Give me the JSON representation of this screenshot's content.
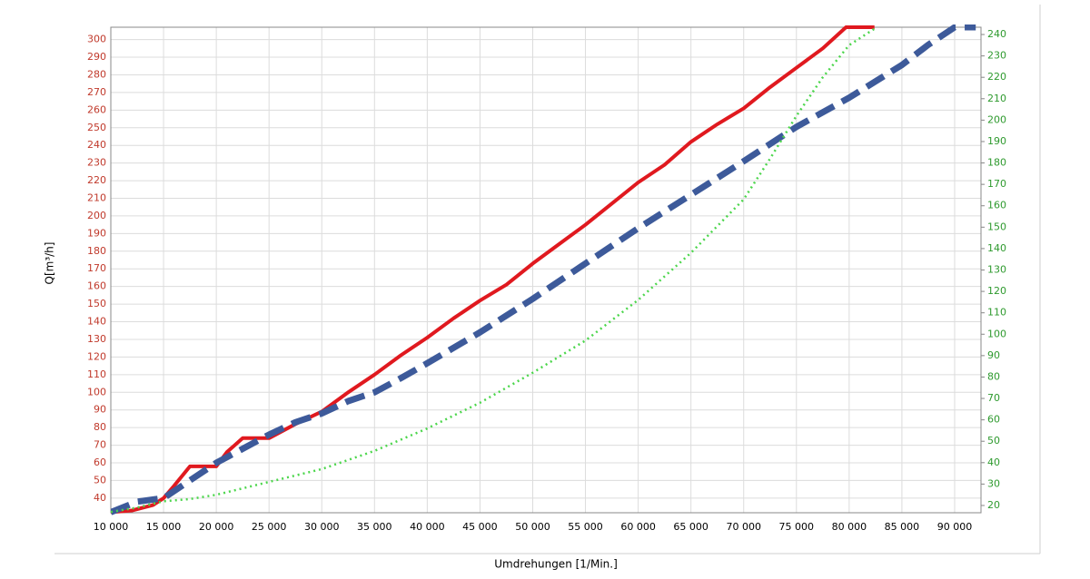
{
  "chart_data": {
    "type": "line",
    "x_label": "Umdrehungen [1/Min.]",
    "y_label": "Q[m³/h]",
    "xlim": [
      10000,
      92500
    ],
    "ylim": [
      31.7,
      307
    ],
    "y2lim": [
      16.6,
      243.4
    ],
    "xticks": [
      {
        "value": 10000,
        "label": "10 000"
      },
      {
        "value": 15000,
        "label": "15 000"
      },
      {
        "value": 20000,
        "label": "20 000"
      },
      {
        "value": 25000,
        "label": "25 000"
      },
      {
        "value": 30000,
        "label": "30 000"
      },
      {
        "value": 35000,
        "label": "35 000"
      },
      {
        "value": 40000,
        "label": "40 000"
      },
      {
        "value": 45000,
        "label": "45 000"
      },
      {
        "value": 50000,
        "label": "50 000"
      },
      {
        "value": 55000,
        "label": "55 000"
      },
      {
        "value": 60000,
        "label": "60 000"
      },
      {
        "value": 65000,
        "label": "65 000"
      },
      {
        "value": 70000,
        "label": "70 000"
      },
      {
        "value": 75000,
        "label": "75 000"
      },
      {
        "value": 80000,
        "label": "80 000"
      },
      {
        "value": 85000,
        "label": "85 000"
      },
      {
        "value": 90000,
        "label": "90 000"
      }
    ],
    "yticks": [
      40,
      50,
      60,
      70,
      80,
      90,
      100,
      110,
      120,
      130,
      140,
      150,
      160,
      170,
      180,
      190,
      200,
      210,
      220,
      230,
      240,
      250,
      260,
      270,
      280,
      290,
      300
    ],
    "y2ticks": [
      20,
      30,
      40,
      50,
      60,
      70,
      80,
      90,
      100,
      110,
      120,
      130,
      140,
      150,
      160,
      170,
      180,
      190,
      200,
      210,
      220,
      230,
      240
    ],
    "ytick_color": "#c0392b",
    "y2tick_color": "#2e9a2e",
    "grid": true,
    "series": [
      {
        "color": "#e0191f",
        "style": "solid",
        "x": [
          10000,
          12000,
          14000,
          15000,
          16000,
          17500,
          20000,
          21000,
          22500,
          25000,
          27500,
          30000,
          32500,
          35000,
          37500,
          40000,
          42500,
          45000,
          47500,
          50000,
          52500,
          55000,
          57500,
          60000,
          62500,
          65000,
          67500,
          70000,
          72500,
          75000,
          77500,
          79700,
          82400
        ],
        "values": [
          32,
          33,
          36,
          40,
          47,
          58,
          58,
          66,
          74,
          74,
          82,
          89,
          100,
          110,
          121,
          131,
          142,
          152,
          161,
          173,
          184,
          195,
          207,
          219,
          229,
          242,
          252,
          261,
          273,
          284,
          295,
          307,
          307
        ]
      },
      {
        "color": "#3d5a9a",
        "style": "dashed",
        "x": [
          10000,
          12500,
          15000,
          17500,
          20000,
          22500,
          25000,
          27500,
          30000,
          32500,
          35000,
          37500,
          40000,
          45000,
          50000,
          55000,
          60000,
          65000,
          70000,
          75000,
          80000,
          85000,
          87500,
          90000,
          92000
        ],
        "values": [
          32,
          38,
          40,
          50,
          60,
          68,
          76,
          83,
          88,
          95,
          100,
          108,
          116.5,
          134,
          153,
          173,
          193,
          212,
          231,
          250.5,
          267,
          285.6,
          297,
          307,
          307
        ]
      },
      {
        "color": "#4cd64c",
        "style": "dotted",
        "axis": "y2",
        "x": [
          10000,
          12500,
          15000,
          17500,
          20000,
          25000,
          30000,
          35000,
          40000,
          45000,
          50000,
          55000,
          60000,
          65000,
          70000,
          72500,
          75000,
          77500,
          80000,
          82500
        ],
        "values": [
          17,
          19,
          22,
          23,
          25,
          31,
          37,
          45.5,
          56,
          68,
          82,
          97,
          116,
          138,
          163,
          182,
          202,
          220,
          235,
          243
        ]
      }
    ]
  }
}
